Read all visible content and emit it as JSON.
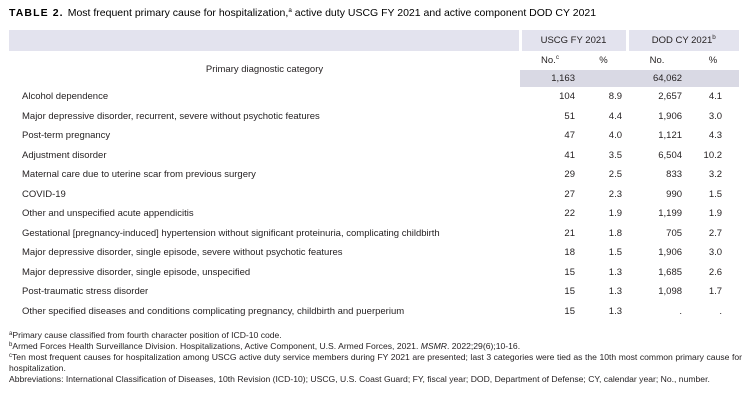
{
  "title": {
    "label": "TABLE 2.",
    "text_before_sup": "Most frequent primary cause for hospitalization,",
    "sup": "a",
    "text_after_sup": " active duty USCG FY 2021 and active component DOD CY 2021"
  },
  "table": {
    "stub_label": "Primary diagnostic category",
    "groups": {
      "uscg": {
        "label": "USCG FY 2021"
      },
      "dod": {
        "label": "DOD CY 2021",
        "sup": "b"
      }
    },
    "subheaders": {
      "uscg_no": "No.",
      "uscg_no_sup": "c",
      "uscg_pct": "%",
      "dod_no": "No.",
      "dod_pct": "%"
    },
    "totals": {
      "uscg_no": "1,163",
      "dod_no": "64,062"
    },
    "rows": [
      {
        "category": "Alcohol dependence",
        "uscg_no": "104",
        "uscg_pct": "8.9",
        "dod_no": "2,657",
        "dod_pct": "4.1"
      },
      {
        "category": "Major depressive disorder, recurrent, severe without psychotic features",
        "uscg_no": "51",
        "uscg_pct": "4.4",
        "dod_no": "1,906",
        "dod_pct": "3.0"
      },
      {
        "category": "Post-term pregnancy",
        "uscg_no": "47",
        "uscg_pct": "4.0",
        "dod_no": "1,121",
        "dod_pct": "4.3"
      },
      {
        "category": "Adjustment disorder",
        "uscg_no": "41",
        "uscg_pct": "3.5",
        "dod_no": "6,504",
        "dod_pct": "10.2"
      },
      {
        "category": "Maternal care due to uterine scar from previous surgery",
        "uscg_no": "29",
        "uscg_pct": "2.5",
        "dod_no": "833",
        "dod_pct": "3.2"
      },
      {
        "category": "COVID-19",
        "uscg_no": "27",
        "uscg_pct": "2.3",
        "dod_no": "990",
        "dod_pct": "1.5"
      },
      {
        "category": "Other and unspecified acute appendicitis",
        "uscg_no": "22",
        "uscg_pct": "1.9",
        "dod_no": "1,199",
        "dod_pct": "1.9"
      },
      {
        "category": "Gestational [pregnancy-induced] hypertension without significant proteinuria, complicating childbirth",
        "uscg_no": "21",
        "uscg_pct": "1.8",
        "dod_no": "705",
        "dod_pct": "2.7"
      },
      {
        "category": "Major depressive disorder, single episode, severe without psychotic features",
        "uscg_no": "18",
        "uscg_pct": "1.5",
        "dod_no": "1,906",
        "dod_pct": "3.0"
      },
      {
        "category": "Major depressive disorder, single episode, unspecified",
        "uscg_no": "15",
        "uscg_pct": "1.3",
        "dod_no": "1,685",
        "dod_pct": "2.6"
      },
      {
        "category": "Post-traumatic stress disorder",
        "uscg_no": "15",
        "uscg_pct": "1.3",
        "dod_no": "1,098",
        "dod_pct": "1.7"
      },
      {
        "category": "Other specified diseases and conditions complicating pregnancy, childbirth and puerperium",
        "uscg_no": "15",
        "uscg_pct": "1.3",
        "dod_no": ".",
        "dod_pct": "."
      }
    ]
  },
  "footnotes": {
    "a": {
      "sup": "a",
      "text": "Primary cause classified from fourth character position of ICD-10 code."
    },
    "b": {
      "sup": "b",
      "pre": "Armed Forces Health Surveillance Division. Hospitalizations, Active Component, U.S. Armed Forces, 2021. ",
      "italic": "MSMR",
      "post": ". 2022;29(6);10-16."
    },
    "c": {
      "sup": "c",
      "text": "Ten most frequent causes for hospitalization among USCG active duty service members during FY 2021 are presented; last 3 categories were tied as the 10th most common primary cause for hospitalization."
    },
    "abbreviations": "Abbreviations: International Classification of Diseases, 10th Revision (ICD-10); USCG, U.S. Coast Guard; FY, fiscal year; DOD, Department of Defense; CY, calendar year; No., number."
  },
  "colors": {
    "header_band": "#e3e3ee",
    "totals_band": "#d9d9e4",
    "text": "#231f20"
  }
}
